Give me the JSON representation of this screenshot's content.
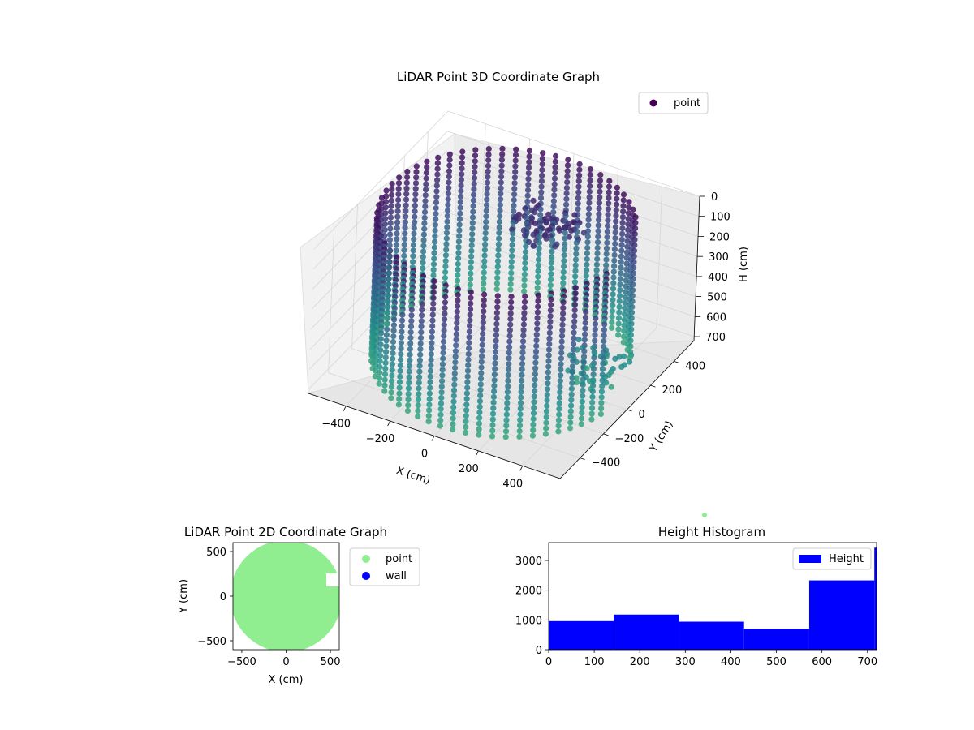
{
  "chart_data": [
    {
      "type": "scatter",
      "projection": "3d",
      "title": "LiDAR Point 3D Coordinate Graph",
      "xlabel": "X (cm)",
      "ylabel": "Y (cm)",
      "zlabel": "H (cm)",
      "x_ticks": [
        -400,
        -200,
        0,
        200,
        400
      ],
      "y_ticks": [
        -400,
        -200,
        0,
        200,
        400
      ],
      "z_ticks": [
        0,
        100,
        200,
        300,
        400,
        500,
        600,
        700
      ],
      "xlim": [
        -570,
        570
      ],
      "ylim": [
        -570,
        570
      ],
      "zlim": [
        720,
        0
      ],
      "z_inverted": true,
      "legend": [
        "point"
      ],
      "legend_position": "upper-right",
      "colormap": "viridis (by height)",
      "description_shape": "cylindrical wall ring of points, radius ~520, heights 0-720, with clusters near the ceiling",
      "series": [
        {
          "name": "point",
          "color": "#440154"
        }
      ]
    },
    {
      "type": "scatter",
      "title": "LiDAR Point 2D Coordinate Graph",
      "xlabel": "X (cm)",
      "ylabel": "Y (cm)",
      "x_ticks": [
        -500,
        0,
        500
      ],
      "y_ticks": [
        -500,
        0,
        500
      ],
      "xlim": [
        -600,
        600
      ],
      "ylim": [
        -600,
        600
      ],
      "legend": [
        "point",
        "wall"
      ],
      "legend_position": "outside-right",
      "series": [
        {
          "name": "point",
          "color": "#90ee90"
        },
        {
          "name": "wall",
          "color": "#0000ff"
        }
      ]
    },
    {
      "type": "bar",
      "title": "Height Histogram",
      "legend": [
        "Height"
      ],
      "legend_position": "top-right",
      "color": "#0000ff",
      "x_ticks": [
        0,
        100,
        200,
        300,
        400,
        500,
        600,
        700
      ],
      "y_ticks": [
        0,
        1000,
        2000,
        3000
      ],
      "xlim": [
        0,
        720
      ],
      "ylim": [
        0,
        3600
      ],
      "bins": [
        {
          "x0": 0,
          "x1": 143,
          "value": 960
        },
        {
          "x0": 143,
          "x1": 286,
          "value": 1180
        },
        {
          "x0": 286,
          "x1": 429,
          "value": 940
        },
        {
          "x0": 429,
          "x1": 572,
          "value": 700
        },
        {
          "x0": 572,
          "x1": 715,
          "value": 2330
        },
        {
          "x0": 715,
          "x1": 720,
          "value": 3430
        }
      ]
    }
  ]
}
